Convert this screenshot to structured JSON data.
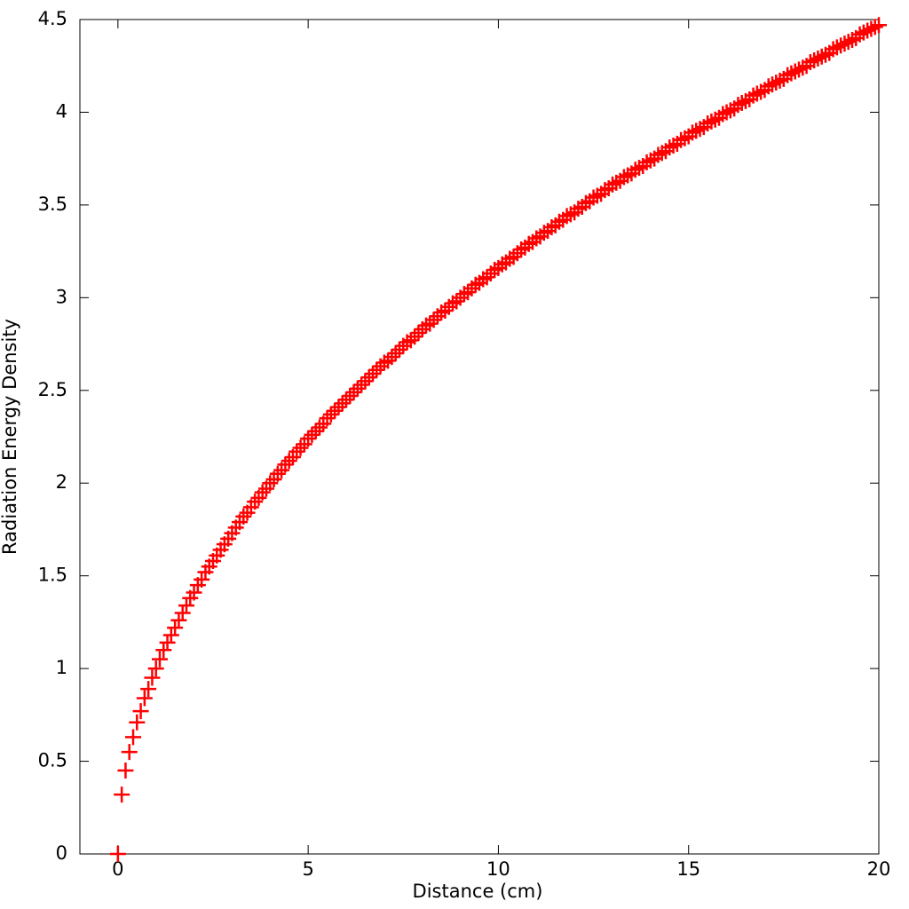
{
  "chart_data": {
    "type": "scatter",
    "x_label": "Distance (cm)",
    "y_label": "Radiation Energy Density",
    "xlim": [
      -1,
      20
    ],
    "ylim": [
      0,
      4.5
    ],
    "xticks": [
      0,
      5,
      10,
      15,
      20
    ],
    "yticks": [
      0,
      0.5,
      1,
      1.5,
      2,
      2.5,
      3,
      3.5,
      4,
      4.5
    ],
    "marker": "plus",
    "color": "#ff0000",
    "x": [
      0,
      0.1,
      0.2,
      0.3,
      0.4,
      0.5,
      0.6,
      0.7,
      0.8,
      0.9,
      1,
      1.1,
      1.2,
      1.3,
      1.4,
      1.5,
      1.6,
      1.7,
      1.8,
      1.9,
      2,
      2.1,
      2.2,
      2.3,
      2.4,
      2.5,
      2.6,
      2.7,
      2.8,
      2.9,
      3,
      3.1,
      3.2,
      3.3,
      3.4,
      3.5,
      3.6,
      3.7,
      3.8,
      3.9,
      4,
      4.1,
      4.2,
      4.3,
      4.4,
      4.5,
      4.6,
      4.7,
      4.8,
      4.9,
      5,
      5.1,
      5.2,
      5.3,
      5.4,
      5.5,
      5.6,
      5.7,
      5.8,
      5.9,
      6,
      6.1,
      6.2,
      6.3,
      6.4,
      6.5,
      6.6,
      6.7,
      6.8,
      6.9,
      7,
      7.1,
      7.2,
      7.3,
      7.4,
      7.5,
      7.6,
      7.7,
      7.8,
      7.9,
      8,
      8.1,
      8.2,
      8.3,
      8.4,
      8.5,
      8.6,
      8.7,
      8.8,
      8.9,
      9,
      9.1,
      9.2,
      9.3,
      9.4,
      9.5,
      9.6,
      9.7,
      9.8,
      9.9,
      10,
      10.1,
      10.2,
      10.3,
      10.4,
      10.5,
      10.6,
      10.7,
      10.8,
      10.9,
      11,
      11.1,
      11.2,
      11.3,
      11.4,
      11.5,
      11.6,
      11.7,
      11.8,
      11.9,
      12,
      12.1,
      12.2,
      12.3,
      12.4,
      12.5,
      12.6,
      12.7,
      12.8,
      12.9,
      13,
      13.1,
      13.2,
      13.3,
      13.4,
      13.5,
      13.6,
      13.7,
      13.8,
      13.9,
      14,
      14.1,
      14.2,
      14.3,
      14.4,
      14.5,
      14.6,
      14.7,
      14.8,
      14.9,
      15,
      15.1,
      15.2,
      15.3,
      15.4,
      15.5,
      15.6,
      15.7,
      15.8,
      15.9,
      16,
      16.1,
      16.2,
      16.3,
      16.4,
      16.5,
      16.6,
      16.7,
      16.8,
      16.9,
      17,
      17.1,
      17.2,
      17.3,
      17.4,
      17.5,
      17.6,
      17.7,
      17.8,
      17.9,
      18,
      18.1,
      18.2,
      18.3,
      18.4,
      18.5,
      18.6,
      18.7,
      18.8,
      18.9,
      19,
      19.1,
      19.2,
      19.3,
      19.4,
      19.5,
      19.6,
      19.7,
      19.8,
      19.9,
      20
    ],
    "values": [
      0,
      0.32,
      0.45,
      0.55,
      0.63,
      0.71,
      0.77,
      0.84,
      0.89,
      0.95,
      1,
      1.05,
      1.1,
      1.14,
      1.18,
      1.22,
      1.26,
      1.3,
      1.34,
      1.38,
      1.41,
      1.45,
      1.48,
      1.52,
      1.55,
      1.58,
      1.61,
      1.64,
      1.67,
      1.7,
      1.73,
      1.76,
      1.79,
      1.82,
      1.84,
      1.87,
      1.9,
      1.92,
      1.95,
      1.97,
      2,
      2.02,
      2.05,
      2.07,
      2.1,
      2.12,
      2.14,
      2.17,
      2.19,
      2.21,
      2.24,
      2.26,
      2.28,
      2.3,
      2.32,
      2.35,
      2.37,
      2.39,
      2.41,
      2.43,
      2.45,
      2.47,
      2.49,
      2.51,
      2.53,
      2.55,
      2.57,
      2.59,
      2.61,
      2.63,
      2.65,
      2.66,
      2.68,
      2.7,
      2.72,
      2.74,
      2.76,
      2.77,
      2.79,
      2.81,
      2.83,
      2.85,
      2.86,
      2.88,
      2.9,
      2.92,
      2.93,
      2.95,
      2.97,
      2.98,
      3,
      3.02,
      3.03,
      3.05,
      3.07,
      3.08,
      3.1,
      3.11,
      3.13,
      3.15,
      3.16,
      3.18,
      3.19,
      3.21,
      3.22,
      3.24,
      3.26,
      3.27,
      3.29,
      3.3,
      3.32,
      3.33,
      3.35,
      3.36,
      3.38,
      3.39,
      3.41,
      3.42,
      3.44,
      3.45,
      3.46,
      3.48,
      3.49,
      3.51,
      3.52,
      3.54,
      3.55,
      3.56,
      3.58,
      3.59,
      3.61,
      3.62,
      3.63,
      3.65,
      3.66,
      3.67,
      3.69,
      3.7,
      3.71,
      3.73,
      3.74,
      3.75,
      3.77,
      3.78,
      3.79,
      3.81,
      3.82,
      3.83,
      3.85,
      3.86,
      3.87,
      3.89,
      3.9,
      3.91,
      3.92,
      3.94,
      3.95,
      3.96,
      3.97,
      3.99,
      4,
      4.01,
      4.02,
      4.04,
      4.05,
      4.06,
      4.07,
      4.09,
      4.1,
      4.11,
      4.12,
      4.14,
      4.15,
      4.16,
      4.17,
      4.18,
      4.2,
      4.21,
      4.22,
      4.23,
      4.24,
      4.25,
      4.27,
      4.28,
      4.29,
      4.3,
      4.31,
      4.32,
      4.34,
      4.35,
      4.36,
      4.37,
      4.38,
      4.39,
      4.4,
      4.42,
      4.43,
      4.44,
      4.45,
      4.46,
      4.47
    ]
  }
}
